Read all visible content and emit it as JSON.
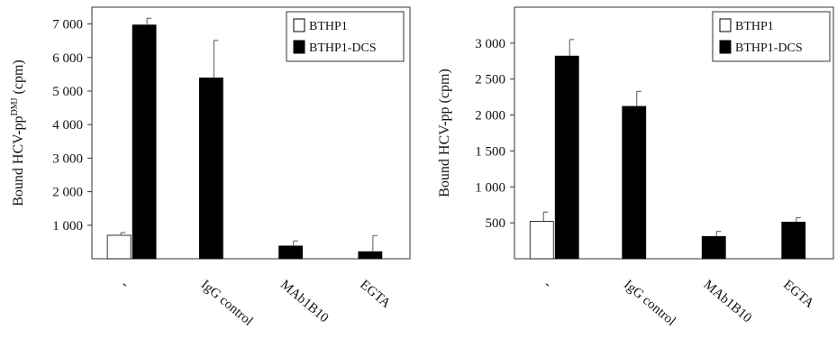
{
  "chart_data": [
    {
      "type": "bar",
      "ylabel_main": "Bound HCV-pp",
      "ylabel_sup": "DMJ",
      "ylabel_tail": " (cpm)",
      "categories": [
        "-",
        "IgG control",
        "MAb1B10",
        "EGTA"
      ],
      "series": [
        {
          "name": "BTHP1",
          "values": [
            700,
            null,
            null,
            null
          ],
          "errors": [
            80,
            null,
            null,
            null
          ],
          "color": "#ffffff"
        },
        {
          "name": "BTHP1-DCS",
          "values": [
            6970,
            5390,
            380,
            210
          ],
          "errors": [
            200,
            1120,
            150,
            480
          ],
          "color": "#000000"
        }
      ],
      "ylim": [
        0,
        7500
      ],
      "yticks": [
        1000,
        2000,
        3000,
        4000,
        5000,
        6000,
        7000
      ],
      "ytick_labels": [
        "1 000",
        "2 000",
        "3 000",
        "4 000",
        "5 000",
        "6 000",
        "7 000"
      ],
      "legend": "top-right",
      "grid": false
    },
    {
      "type": "bar",
      "ylabel_main": "Bound HCV-pp",
      "ylabel_sup": "",
      "ylabel_tail": " (cpm)",
      "categories": [
        "-",
        "IgG control",
        "MAb1B10",
        "EGTA"
      ],
      "series": [
        {
          "name": "BTHP1",
          "values": [
            520,
            null,
            null,
            null
          ],
          "errors": [
            130,
            null,
            null,
            null
          ],
          "color": "#ffffff"
        },
        {
          "name": "BTHP1-DCS",
          "values": [
            2820,
            2120,
            310,
            510
          ],
          "errors": [
            230,
            210,
            70,
            60
          ],
          "color": "#000000"
        }
      ],
      "ylim": [
        0,
        3500
      ],
      "yticks": [
        500,
        1000,
        1500,
        2000,
        2500,
        3000
      ],
      "ytick_labels": [
        "500",
        "1 000",
        "1 500",
        "2 000",
        "2 500",
        "3 000"
      ],
      "legend": "top-right",
      "grid": false
    }
  ]
}
